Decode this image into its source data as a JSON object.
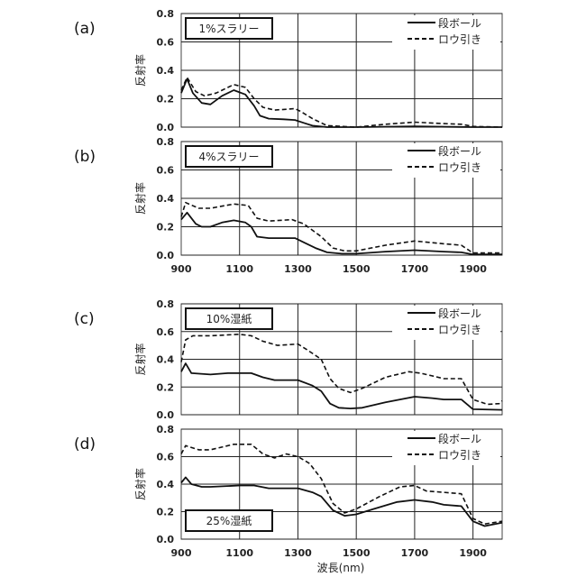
{
  "chart_data": [
    {
      "type": "line",
      "panel_label": "(a)",
      "title": "1%スラリー",
      "ylabel": "反射率",
      "xlabel": "",
      "xlim": [
        900,
        2000
      ],
      "ylim": [
        0,
        0.8
      ],
      "xticks": [
        900,
        1100,
        1300,
        1500,
        1700,
        1900
      ],
      "yticks": [
        "0.0",
        "0.2",
        "0.4",
        "0.6",
        "0.8"
      ],
      "show_xticks": false,
      "legend_position": "top-right",
      "title_box_position": "top-left",
      "series": [
        {
          "name": "段ボール",
          "style": "solid",
          "points": [
            [
              900,
              0.24
            ],
            [
              920,
              0.34
            ],
            [
              940,
              0.24
            ],
            [
              970,
              0.17
            ],
            [
              1000,
              0.16
            ],
            [
              1040,
              0.22
            ],
            [
              1080,
              0.26
            ],
            [
              1120,
              0.23
            ],
            [
              1150,
              0.15
            ],
            [
              1170,
              0.08
            ],
            [
              1200,
              0.06
            ],
            [
              1250,
              0.055
            ],
            [
              1290,
              0.05
            ],
            [
              1320,
              0.03
            ],
            [
              1350,
              0.01
            ],
            [
              1400,
              0.0
            ],
            [
              1500,
              0.0
            ],
            [
              1700,
              0.005
            ],
            [
              1900,
              0.0
            ],
            [
              2000,
              0.0
            ]
          ]
        },
        {
          "name": "ロウ引き",
          "style": "dashed",
          "points": [
            [
              900,
              0.26
            ],
            [
              920,
              0.35
            ],
            [
              950,
              0.25
            ],
            [
              980,
              0.22
            ],
            [
              1020,
              0.24
            ],
            [
              1080,
              0.3
            ],
            [
              1120,
              0.28
            ],
            [
              1150,
              0.2
            ],
            [
              1180,
              0.14
            ],
            [
              1220,
              0.12
            ],
            [
              1290,
              0.13
            ],
            [
              1310,
              0.11
            ],
            [
              1350,
              0.06
            ],
            [
              1400,
              0.01
            ],
            [
              1500,
              0.0
            ],
            [
              1600,
              0.02
            ],
            [
              1700,
              0.035
            ],
            [
              1800,
              0.025
            ],
            [
              1860,
              0.02
            ],
            [
              1900,
              0.005
            ],
            [
              2000,
              0.0
            ]
          ]
        }
      ]
    },
    {
      "type": "line",
      "panel_label": "(b)",
      "title": "4%スラリー",
      "ylabel": "反射率",
      "xlabel": "",
      "xlim": [
        900,
        2000
      ],
      "ylim": [
        0,
        0.8
      ],
      "xticks": [
        900,
        1100,
        1300,
        1500,
        1700,
        1900
      ],
      "yticks": [
        "0.0",
        "0.2",
        "0.4",
        "0.6",
        "0.8"
      ],
      "show_xticks": true,
      "legend_position": "top-right",
      "title_box_position": "top-left",
      "series": [
        {
          "name": "段ボール",
          "style": "solid",
          "points": [
            [
              900,
              0.25
            ],
            [
              920,
              0.3
            ],
            [
              950,
              0.22
            ],
            [
              970,
              0.2
            ],
            [
              1000,
              0.2
            ],
            [
              1040,
              0.23
            ],
            [
              1080,
              0.245
            ],
            [
              1120,
              0.23
            ],
            [
              1140,
              0.2
            ],
            [
              1160,
              0.13
            ],
            [
              1200,
              0.12
            ],
            [
              1250,
              0.12
            ],
            [
              1290,
              0.12
            ],
            [
              1320,
              0.09
            ],
            [
              1360,
              0.05
            ],
            [
              1400,
              0.02
            ],
            [
              1450,
              0.01
            ],
            [
              1500,
              0.01
            ],
            [
              1600,
              0.025
            ],
            [
              1700,
              0.035
            ],
            [
              1800,
              0.025
            ],
            [
              1860,
              0.02
            ],
            [
              1900,
              0.005
            ],
            [
              2000,
              0.005
            ]
          ]
        },
        {
          "name": "ロウ引き",
          "style": "dashed",
          "points": [
            [
              900,
              0.27
            ],
            [
              915,
              0.37
            ],
            [
              960,
              0.33
            ],
            [
              1000,
              0.33
            ],
            [
              1080,
              0.36
            ],
            [
              1130,
              0.35
            ],
            [
              1160,
              0.26
            ],
            [
              1200,
              0.24
            ],
            [
              1280,
              0.25
            ],
            [
              1320,
              0.22
            ],
            [
              1380,
              0.13
            ],
            [
              1420,
              0.05
            ],
            [
              1460,
              0.03
            ],
            [
              1500,
              0.03
            ],
            [
              1600,
              0.07
            ],
            [
              1700,
              0.1
            ],
            [
              1800,
              0.08
            ],
            [
              1860,
              0.07
            ],
            [
              1900,
              0.015
            ],
            [
              2000,
              0.015
            ]
          ]
        }
      ]
    },
    {
      "type": "line",
      "panel_label": "(c)",
      "title": "10%湿紙",
      "ylabel": "反射率",
      "xlabel": "",
      "xlim": [
        900,
        2000
      ],
      "ylim": [
        0,
        0.8
      ],
      "xticks": [
        900,
        1100,
        1300,
        1500,
        1700,
        1900
      ],
      "yticks": [
        "0.0",
        "0.2",
        "0.4",
        "0.6",
        "0.8"
      ],
      "show_xticks": false,
      "legend_position": "top-right",
      "title_box_position": "top-left",
      "series": [
        {
          "name": "段ボール",
          "style": "solid",
          "points": [
            [
              900,
              0.31
            ],
            [
              915,
              0.37
            ],
            [
              935,
              0.3
            ],
            [
              1000,
              0.29
            ],
            [
              1060,
              0.3
            ],
            [
              1140,
              0.3
            ],
            [
              1180,
              0.27
            ],
            [
              1220,
              0.25
            ],
            [
              1300,
              0.25
            ],
            [
              1350,
              0.21
            ],
            [
              1380,
              0.17
            ],
            [
              1410,
              0.08
            ],
            [
              1440,
              0.05
            ],
            [
              1480,
              0.045
            ],
            [
              1520,
              0.05
            ],
            [
              1600,
              0.09
            ],
            [
              1700,
              0.13
            ],
            [
              1760,
              0.12
            ],
            [
              1800,
              0.11
            ],
            [
              1860,
              0.11
            ],
            [
              1900,
              0.04
            ],
            [
              2000,
              0.035
            ]
          ]
        },
        {
          "name": "ロウ引き",
          "style": "dashed",
          "points": [
            [
              900,
              0.38
            ],
            [
              915,
              0.54
            ],
            [
              940,
              0.57
            ],
            [
              1000,
              0.57
            ],
            [
              1100,
              0.58
            ],
            [
              1140,
              0.57
            ],
            [
              1180,
              0.53
            ],
            [
              1230,
              0.5
            ],
            [
              1300,
              0.51
            ],
            [
              1330,
              0.47
            ],
            [
              1380,
              0.4
            ],
            [
              1410,
              0.26
            ],
            [
              1440,
              0.19
            ],
            [
              1480,
              0.16
            ],
            [
              1520,
              0.19
            ],
            [
              1600,
              0.27
            ],
            [
              1680,
              0.31
            ],
            [
              1720,
              0.3
            ],
            [
              1760,
              0.28
            ],
            [
              1800,
              0.26
            ],
            [
              1860,
              0.26
            ],
            [
              1900,
              0.11
            ],
            [
              1950,
              0.075
            ],
            [
              1990,
              0.08
            ],
            [
              2000,
              0.1
            ]
          ]
        }
      ]
    },
    {
      "type": "line",
      "panel_label": "(d)",
      "title": "25%湿紙",
      "ylabel": "反射率",
      "xlabel": "波長(nm)",
      "xlim": [
        900,
        2000
      ],
      "ylim": [
        0,
        0.8
      ],
      "xticks": [
        900,
        1100,
        1300,
        1500,
        1700,
        1900
      ],
      "yticks": [
        "0.0",
        "0.2",
        "0.4",
        "0.6",
        "0.8"
      ],
      "show_xticks": true,
      "legend_position": "top-right",
      "title_box_position": "bottom-left",
      "series": [
        {
          "name": "段ボール",
          "style": "solid",
          "points": [
            [
              900,
              0.41
            ],
            [
              915,
              0.45
            ],
            [
              935,
              0.4
            ],
            [
              970,
              0.38
            ],
            [
              1000,
              0.38
            ],
            [
              1100,
              0.39
            ],
            [
              1150,
              0.39
            ],
            [
              1200,
              0.37
            ],
            [
              1300,
              0.37
            ],
            [
              1350,
              0.34
            ],
            [
              1380,
              0.31
            ],
            [
              1420,
              0.21
            ],
            [
              1460,
              0.17
            ],
            [
              1500,
              0.18
            ],
            [
              1560,
              0.22
            ],
            [
              1640,
              0.27
            ],
            [
              1700,
              0.285
            ],
            [
              1760,
              0.27
            ],
            [
              1800,
              0.25
            ],
            [
              1860,
              0.24
            ],
            [
              1900,
              0.13
            ],
            [
              1940,
              0.095
            ],
            [
              2000,
              0.12
            ]
          ]
        },
        {
          "name": "ロウ引き",
          "style": "dashed",
          "points": [
            [
              900,
              0.62
            ],
            [
              915,
              0.68
            ],
            [
              960,
              0.65
            ],
            [
              1000,
              0.65
            ],
            [
              1080,
              0.69
            ],
            [
              1140,
              0.69
            ],
            [
              1180,
              0.62
            ],
            [
              1220,
              0.59
            ],
            [
              1260,
              0.62
            ],
            [
              1300,
              0.6
            ],
            [
              1340,
              0.55
            ],
            [
              1380,
              0.44
            ],
            [
              1420,
              0.26
            ],
            [
              1460,
              0.19
            ],
            [
              1500,
              0.22
            ],
            [
              1580,
              0.31
            ],
            [
              1650,
              0.38
            ],
            [
              1700,
              0.39
            ],
            [
              1740,
              0.35
            ],
            [
              1800,
              0.34
            ],
            [
              1860,
              0.33
            ],
            [
              1900,
              0.15
            ],
            [
              1940,
              0.11
            ],
            [
              2000,
              0.13
            ]
          ]
        }
      ]
    }
  ]
}
